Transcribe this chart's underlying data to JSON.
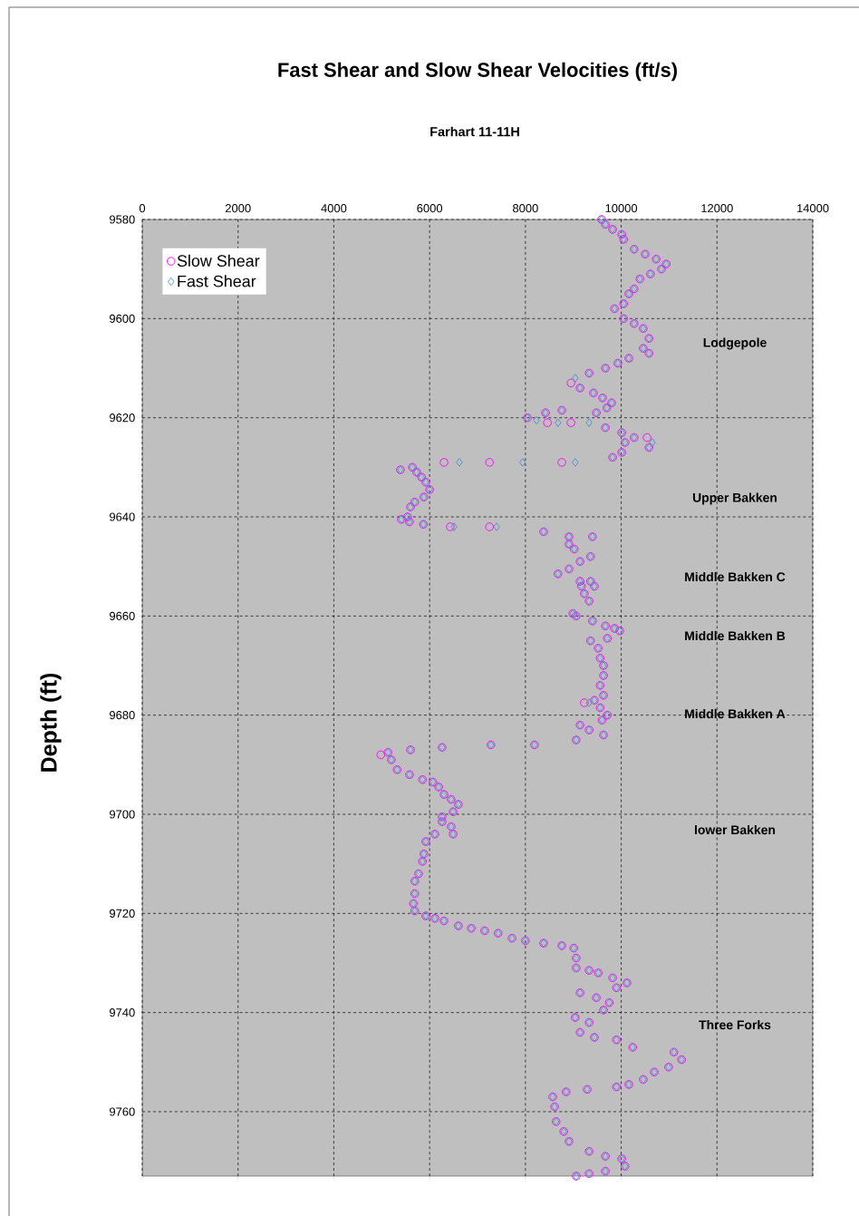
{
  "chart_data": {
    "type": "scatter",
    "title": "Fast Shear and Slow Shear Velocities (ft/s)",
    "subtitle": "Farhart 11-11H",
    "ylabel": "Depth (ft)",
    "xlim": [
      0,
      14000
    ],
    "xticks": [
      0,
      2000,
      4000,
      6000,
      8000,
      10000,
      12000,
      14000
    ],
    "ylim": [
      9773,
      9580
    ],
    "yticks": [
      9580,
      9600,
      9620,
      9640,
      9660,
      9680,
      9700,
      9720,
      9740,
      9760
    ],
    "grid": true,
    "legend": "top left",
    "series": [
      {
        "name": "Slow Shear",
        "color": "#ff00ff",
        "marker": "circle",
        "x": [
          9590,
          9670,
          9820,
          10010,
          10050,
          10270,
          10500,
          10730,
          10940,
          10840,
          10610,
          10390,
          10270,
          10160,
          10050,
          9860,
          10050,
          10270,
          10460,
          10580,
          10460,
          10580,
          10160,
          9930,
          9670,
          9330,
          8950,
          9140,
          9420,
          9610,
          9800,
          9700,
          9480,
          8760,
          8420,
          8040,
          8460,
          8950,
          9670,
          10010,
          10270,
          10540,
          10080,
          10010,
          9820,
          10580,
          8760,
          7250,
          6300,
          5390,
          5640,
          5730,
          5830,
          5920,
          6000,
          5880,
          5690,
          5600,
          5540,
          5410,
          5580,
          5870,
          6430,
          7250,
          8380,
          8910,
          9400,
          8910,
          9020,
          9360,
          9140,
          8910,
          8680,
          9140,
          9360,
          9170,
          9440,
          9230,
          9330,
          8990,
          9060,
          9400,
          9670,
          9860,
          9970,
          9710,
          9360,
          9520,
          9560,
          9630,
          9630,
          9560,
          9630,
          9440,
          9230,
          9560,
          9710,
          9600,
          9140,
          9330,
          9630,
          9060,
          8190,
          7280,
          6260,
          5600,
          4980,
          5130,
          5200,
          5320,
          5580,
          5850,
          6070,
          6190,
          6300,
          6450,
          6600,
          6490,
          6260,
          6260,
          6450,
          6490,
          6110,
          5920,
          5880,
          5850,
          5770,
          5690,
          5690,
          5660,
          5690,
          5920,
          6110,
          6300,
          6600,
          6870,
          7150,
          7430,
          7720,
          8000,
          8380,
          8760,
          9010,
          9060,
          9060,
          9330,
          9520,
          9820,
          10120,
          9900,
          9140,
          9480,
          9750,
          9630,
          9040,
          9330,
          9140,
          9440,
          9900,
          10240,
          11100,
          11260,
          10990,
          10690,
          10460,
          10160,
          9900,
          9290,
          8850,
          8570,
          8610,
          8640,
          8800,
          8910,
          9330,
          9670,
          10010,
          10080,
          9670,
          9330,
          9060
        ],
        "values": [
          9580,
          9581,
          9582,
          9583,
          9584,
          9586,
          9587,
          9588,
          9589,
          9590,
          9591,
          9592,
          9594,
          9595,
          9597,
          9598,
          9600,
          9601,
          9602,
          9604,
          9606,
          9607,
          9608,
          9609,
          9610,
          9611,
          9613,
          9614,
          9615,
          9616,
          9617,
          9618,
          9619,
          9618.5,
          9619,
          9620,
          9621,
          9621,
          9622,
          9623,
          9624,
          9624,
          9625,
          9627,
          9628,
          9626,
          9629,
          9629,
          9629,
          9630.5,
          9630,
          9631,
          9632,
          9633,
          9634.5,
          9636,
          9637,
          9638,
          9640,
          9640.5,
          9641,
          9641.5,
          9642,
          9642,
          9643,
          9644,
          9644,
          9645.5,
          9646.5,
          9648,
          9649,
          9650.5,
          9651.5,
          9653,
          9653,
          9654,
          9654,
          9655.5,
          9657,
          9659.5,
          9660,
          9661,
          9662,
          9662.5,
          9663,
          9664.5,
          9665,
          9666.5,
          9668.5,
          9670,
          9672,
          9674,
          9676,
          9677,
          9677.5,
          9678.5,
          9680,
          9681,
          9682,
          9683,
          9684,
          9685,
          9686,
          9686,
          9686.5,
          9687,
          9688,
          9687.5,
          9689,
          9691,
          9692,
          9693,
          9693.5,
          9694.5,
          9696,
          9697,
          9698,
          9699.5,
          9700.5,
          9701.5,
          9702.5,
          9704,
          9704,
          9705.5,
          9708,
          9709.5,
          9712,
          9713.5,
          9716,
          9718,
          9719.5,
          9720.5,
          9721,
          9721.5,
          9722.5,
          9723,
          9723.5,
          9724,
          9725,
          9725.5,
          9726,
          9726.5,
          9727,
          9729,
          9731,
          9731.5,
          9732,
          9733,
          9734,
          9735,
          9736,
          9737,
          9738,
          9739.5,
          9741,
          9742,
          9744,
          9745,
          9745.5,
          9747,
          9748,
          9749.5,
          9751,
          9752,
          9753.5,
          9754.5,
          9755,
          9755.5,
          9756,
          9757,
          9759,
          9762,
          9764,
          9766,
          9768,
          9769,
          9769.5,
          9771,
          9772,
          9772.5,
          9773
        ]
      },
      {
        "name": "Fast Shear",
        "color": "#4a8fd0",
        "marker": "diamond",
        "x": [
          9590,
          9670,
          9820,
          10010,
          10050,
          10270,
          10500,
          10730,
          10940,
          10840,
          10610,
          10390,
          10270,
          10160,
          10050,
          9860,
          10050,
          10270,
          10460,
          10580,
          10460,
          10580,
          10160,
          9930,
          9670,
          9330,
          9040,
          9140,
          9420,
          9610,
          9800,
          9700,
          9480,
          8760,
          8420,
          8040,
          8230,
          8680,
          9330,
          9670,
          10010,
          10270,
          10650,
          10080,
          10010,
          9820,
          10580,
          9040,
          7940,
          6620,
          5390,
          5640,
          5730,
          5830,
          5920,
          6000,
          5880,
          5690,
          5600,
          5540,
          5410,
          5580,
          5870,
          6510,
          7400,
          8380,
          8910,
          9400,
          8910,
          9020,
          9360,
          9140,
          8910,
          8680,
          9140,
          9360,
          9170,
          9440,
          9230,
          9330,
          8990,
          9060,
          9400,
          9670,
          9860,
          9970,
          9710,
          9360,
          9520,
          9560,
          9630,
          9630,
          9560,
          9630,
          9440,
          9330,
          9560,
          9710,
          9600,
          9140,
          9330,
          9630,
          9060,
          8190,
          7280,
          6260,
          5600,
          5130,
          5200,
          5320,
          5580,
          5850,
          6070,
          6190,
          6300,
          6450,
          6600,
          6490,
          6260,
          6260,
          6450,
          6490,
          6110,
          5920,
          5880,
          5850,
          5770,
          5690,
          5690,
          5660,
          5690,
          5920,
          6110,
          6300,
          6600,
          6870,
          7150,
          7430,
          7720,
          8000,
          8380,
          8760,
          9010,
          9060,
          9060,
          9330,
          9520,
          9820,
          10120,
          9900,
          9140,
          9480,
          9750,
          9630,
          9040,
          9330,
          9140,
          9440,
          9900,
          10240,
          11100,
          11260,
          10990,
          10690,
          10460,
          10160,
          9900,
          9290,
          8850,
          8570,
          8610,
          8640,
          8800,
          8910,
          9330,
          9670,
          10010,
          10080,
          9670,
          9330,
          9060
        ],
        "values": [
          9580,
          9581,
          9582,
          9583,
          9584,
          9586,
          9587,
          9588,
          9589,
          9590,
          9591,
          9592,
          9594,
          9595,
          9597,
          9598,
          9600,
          9601,
          9602,
          9604,
          9606,
          9607,
          9608,
          9609,
          9610,
          9611,
          9612,
          9614,
          9615,
          9616,
          9617,
          9618,
          9619,
          9618.5,
          9619,
          9620,
          9620.5,
          9621,
          9621,
          9622,
          9623,
          9624,
          9625,
          9625,
          9627,
          9628,
          9626,
          9629,
          9629,
          9629,
          9630.5,
          9630,
          9631,
          9632,
          9633,
          9634.5,
          9636,
          9637,
          9638,
          9640,
          9640.5,
          9641,
          9641.5,
          9642,
          9642,
          9643,
          9644,
          9644,
          9645.5,
          9646.5,
          9648,
          9649,
          9650.5,
          9651.5,
          9653,
          9653,
          9654,
          9654,
          9655.5,
          9657,
          9659.5,
          9660,
          9661,
          9662,
          9662.5,
          9663,
          9664.5,
          9665,
          9666.5,
          9668.5,
          9670,
          9672,
          9674,
          9676,
          9677,
          9677.5,
          9678.5,
          9680,
          9681,
          9682,
          9683,
          9684,
          9685,
          9686,
          9686,
          9686.5,
          9687,
          9687.5,
          9689,
          9691,
          9692,
          9693,
          9693.5,
          9694.5,
          9696,
          9697,
          9698,
          9699.5,
          9700.5,
          9701.5,
          9702.5,
          9704,
          9704,
          9705.5,
          9708,
          9709.5,
          9712,
          9713.5,
          9716,
          9718,
          9719.5,
          9720.5,
          9721,
          9721.5,
          9722.5,
          9723,
          9723.5,
          9724,
          9725,
          9725.5,
          9726,
          9726.5,
          9727,
          9729,
          9731,
          9731.5,
          9732,
          9733,
          9734,
          9735,
          9736,
          9737,
          9738,
          9739.5,
          9741,
          9742,
          9744,
          9745,
          9745.5,
          9747,
          9748,
          9749.5,
          9751,
          9752,
          9753.5,
          9754.5,
          9755,
          9755.5,
          9756,
          9757,
          9759,
          9762,
          9764,
          9766,
          9768,
          9769,
          9769.5,
          9771,
          9772,
          9772.5,
          9773
        ]
      }
    ],
    "annotations": [
      "Lodgepole",
      "Upper Bakken",
      "Middle Bakken  C",
      "Middle Bakken  B",
      "Middle Bakken  A",
      "lower Bakken",
      "Three Forks"
    ]
  }
}
